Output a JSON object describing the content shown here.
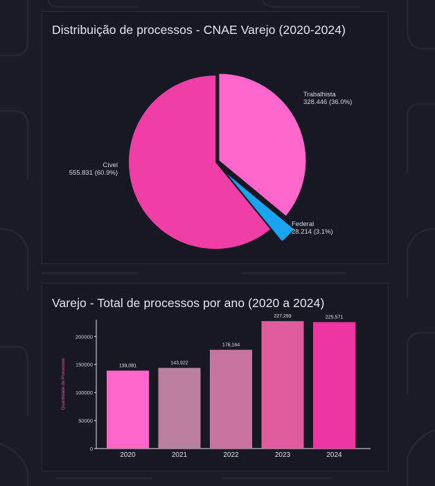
{
  "pie_card": {
    "title": "Distribuição de processos - CNAE Varejo (2020-2024)"
  },
  "bar_card": {
    "title": "Varejo - Total de processos por ano (2020 a 2024)"
  },
  "chart_data": [
    {
      "type": "pie",
      "title": "Distribuição de processos - CNAE Varejo (2020-2024)",
      "slices": [
        {
          "name": "Trabalhista",
          "value": 328446,
          "value_label": "328.446 (36.0%)",
          "percent": 36.0,
          "color": "#ff66cc"
        },
        {
          "name": "Federal",
          "value": 28214,
          "value_label": "28.214 (3.1%)",
          "percent": 3.1,
          "color": "#1aa3ee"
        },
        {
          "name": "Cível",
          "value": 555831,
          "value_label": "555.831 (60.9%)",
          "percent": 60.9,
          "color": "#ef3fa6"
        }
      ]
    },
    {
      "type": "bar",
      "title": "Varejo - Total de processos por ano (2020 a 2024)",
      "categories": [
        "2020",
        "2021",
        "2022",
        "2023",
        "2024"
      ],
      "values": [
        139081,
        143922,
        176164,
        227293,
        225571
      ],
      "value_labels": [
        "139,081",
        "143,922",
        "176,164",
        "227,293",
        "225,571"
      ],
      "bar_colors": [
        "#ff66cc",
        "#bb7f9f",
        "#c9739f",
        "#e05c9f",
        "#ee36a2"
      ],
      "ylabel": "Quantidade de Processos",
      "xlabel": "",
      "ylim": [
        0,
        230000
      ],
      "yticks": [
        0,
        50000,
        100000,
        150000,
        200000
      ],
      "ytick_labels": [
        "0",
        "50000",
        "100000",
        "150000",
        "200000"
      ]
    }
  ]
}
